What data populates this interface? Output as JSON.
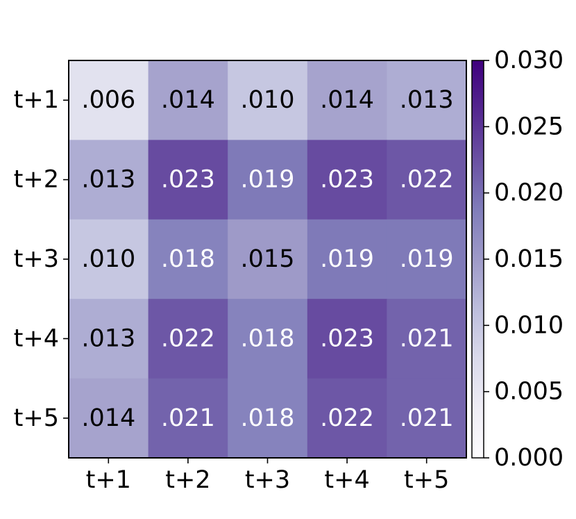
{
  "chart_data": {
    "type": "heatmap",
    "title": "",
    "xlabel": "",
    "ylabel": "",
    "x_categories": [
      "t+1",
      "t+2",
      "t+3",
      "t+4",
      "t+5"
    ],
    "y_categories": [
      "t+1",
      "t+2",
      "t+3",
      "t+4",
      "t+5"
    ],
    "values": [
      [
        0.006,
        0.014,
        0.01,
        0.014,
        0.013
      ],
      [
        0.013,
        0.023,
        0.019,
        0.023,
        0.022
      ],
      [
        0.01,
        0.018,
        0.015,
        0.019,
        0.019
      ],
      [
        0.013,
        0.022,
        0.018,
        0.023,
        0.021
      ],
      [
        0.014,
        0.021,
        0.018,
        0.022,
        0.021
      ]
    ],
    "cell_labels": [
      [
        ".006",
        ".014",
        ".010",
        ".014",
        ".013"
      ],
      [
        ".013",
        ".023",
        ".019",
        ".023",
        ".022"
      ],
      [
        ".010",
        ".018",
        ".015",
        ".019",
        ".019"
      ],
      [
        ".013",
        ".022",
        ".018",
        ".023",
        ".021"
      ],
      [
        ".014",
        ".021",
        ".018",
        ".022",
        ".021"
      ]
    ],
    "colorbar": {
      "range": [
        0.0,
        0.03
      ],
      "ticks": [
        0.0,
        0.005,
        0.01,
        0.015,
        0.02,
        0.025,
        0.03
      ],
      "tick_labels": [
        "0.000",
        "0.005",
        "0.010",
        "0.015",
        "0.020",
        "0.025",
        "0.030"
      ],
      "colormap": "Purples",
      "color_low": "#fcfbfd",
      "color_high": "#3f007d"
    },
    "legend": "none",
    "grid": false
  }
}
